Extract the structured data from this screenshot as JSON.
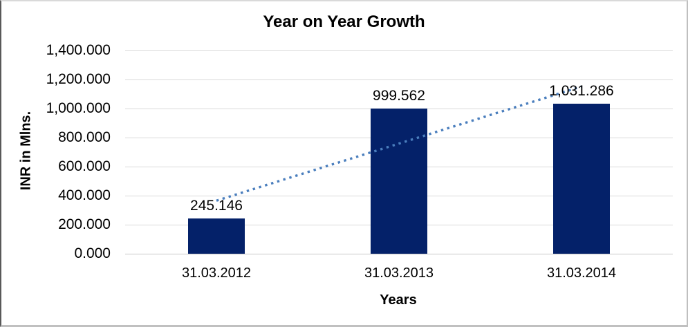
{
  "chart_data": {
    "type": "bar",
    "title": "Year on Year Growth",
    "xlabel": "Years",
    "ylabel": "INR in Mlns.",
    "categories": [
      "31.03.2012",
      "31.03.2013",
      "31.03.2014"
    ],
    "values": [
      245.146,
      999.562,
      1031.286
    ],
    "value_labels": [
      "245.146",
      "999.562",
      "1,031.286"
    ],
    "ylim": [
      0,
      1400
    ],
    "ytick_step": 200,
    "ytick_labels": [
      "0.000",
      "200.000",
      "400.000",
      "600.000",
      "800.000",
      "1,000.000",
      "1,200.000",
      "1,400.000"
    ],
    "grid": true,
    "legend_position": "none",
    "bar_color": "#042169",
    "gridline_color": "#d9d9d9",
    "trendline": {
      "type": "linear",
      "style": "dotted",
      "color": "#4a7ebd",
      "endpoint_values": [
        365.59,
        1151.73
      ]
    }
  }
}
